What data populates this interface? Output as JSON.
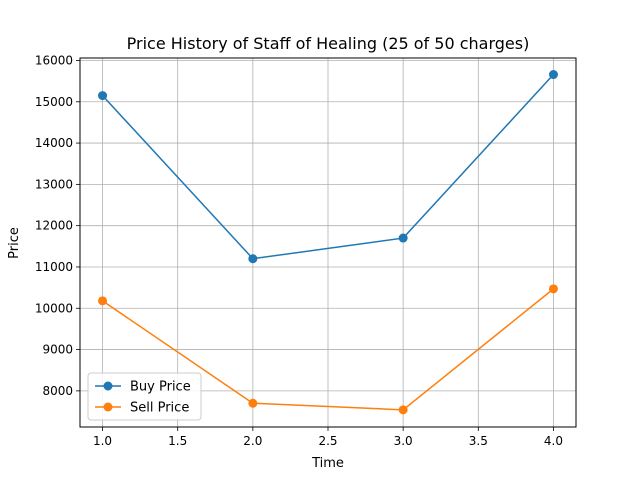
{
  "chart_data": {
    "type": "line",
    "title": "Price History of Staff of Healing (25 of 50 charges)",
    "xlabel": "Time",
    "ylabel": "Price",
    "x": [
      1.0,
      2.0,
      3.0,
      4.0
    ],
    "xlim": [
      0.85,
      4.15
    ],
    "ylim": [
      7125,
      16060
    ],
    "xticks": [
      1.0,
      1.5,
      2.0,
      2.5,
      3.0,
      3.5,
      4.0
    ],
    "xtick_labels": [
      "1.0",
      "1.5",
      "2.0",
      "2.5",
      "3.0",
      "3.5",
      "4.0"
    ],
    "yticks": [
      8000,
      9000,
      10000,
      11000,
      12000,
      13000,
      14000,
      15000,
      16000
    ],
    "ytick_labels": [
      "8000",
      "9000",
      "10000",
      "11000",
      "12000",
      "13000",
      "14000",
      "15000",
      "16000"
    ],
    "grid": true,
    "legend": "lower-left",
    "series": [
      {
        "name": "Buy Price",
        "values": [
          15150,
          11200,
          11700,
          15660
        ],
        "color": "#1f77b4",
        "marker": "circle"
      },
      {
        "name": "Sell Price",
        "values": [
          10180,
          7700,
          7540,
          10470
        ],
        "color": "#ff7f0e",
        "marker": "circle"
      }
    ]
  }
}
